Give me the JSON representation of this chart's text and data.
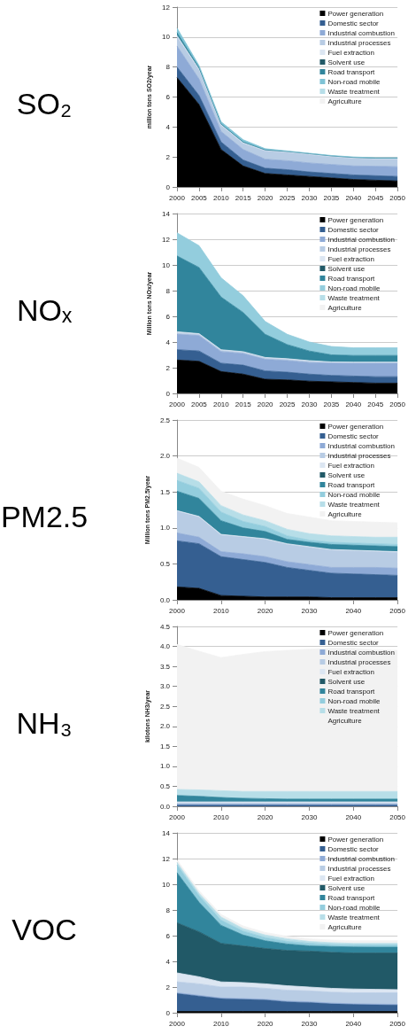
{
  "chart_data": [
    {
      "type": "area",
      "title": "SO₂",
      "ylabel": "million tons SO2/year",
      "stacked": true,
      "grid": "y",
      "legend": "top right",
      "marker": "none",
      "x": [
        2000,
        2005,
        2010,
        2015,
        2020,
        2025,
        2030,
        2035,
        2040,
        2045,
        2050
      ],
      "xlim": [
        2000,
        2050
      ],
      "xticks": [
        2000,
        2005,
        2010,
        2015,
        2020,
        2025,
        2030,
        2035,
        2040,
        2045,
        2050
      ],
      "ylim": [
        0,
        12
      ],
      "yticks": [
        0,
        2,
        4,
        6,
        8,
        10,
        12
      ],
      "series": [
        {
          "name": "Power generation",
          "color": "#000000",
          "values": [
            7.3,
            5.5,
            2.5,
            1.4,
            0.9,
            0.8,
            0.7,
            0.6,
            0.5,
            0.45,
            0.4
          ]
        },
        {
          "name": "Domestic sector",
          "color": "#355f91",
          "values": [
            0.7,
            0.6,
            0.5,
            0.4,
            0.35,
            0.35,
            0.3,
            0.3,
            0.3,
            0.3,
            0.3
          ]
        },
        {
          "name": "Industrial combustion",
          "color": "#8eaad6",
          "values": [
            1.4,
            1.1,
            0.7,
            0.7,
            0.6,
            0.6,
            0.6,
            0.6,
            0.6,
            0.63,
            0.65
          ]
        },
        {
          "name": "Industrial processes",
          "color": "#b8cce4",
          "values": [
            0.6,
            0.6,
            0.4,
            0.4,
            0.55,
            0.55,
            0.55,
            0.5,
            0.5,
            0.47,
            0.5
          ]
        },
        {
          "name": "Fuel extraction",
          "color": "#dce6f2",
          "values": [
            0.1,
            0.05,
            0.05,
            0.05,
            0.05,
            0.05,
            0.05,
            0.05,
            0.05,
            0.05,
            0.05
          ]
        },
        {
          "name": "Solvent use",
          "color": "#215967",
          "values": [
            null,
            null,
            null,
            null,
            null,
            null,
            null,
            null,
            null,
            null,
            null
          ]
        },
        {
          "name": "Road transport",
          "color": "#31859c",
          "values": [
            0.2,
            0.1,
            0.05,
            0.05,
            0.02,
            0.02,
            0.02,
            0.02,
            0.02,
            0.02,
            0.02
          ]
        },
        {
          "name": "Non-road mobile",
          "color": "#7fc3d6",
          "values": [
            0.3,
            0.15,
            0.15,
            0.15,
            0.08,
            0.03,
            0.03,
            0.03,
            0.03,
            0.03,
            0.03
          ]
        },
        {
          "name": "Waste treatment",
          "color": "#b7dee8",
          "values": [
            null,
            null,
            null,
            null,
            null,
            null,
            null,
            null,
            null,
            null,
            null
          ]
        },
        {
          "name": "Agriculture",
          "color": "#f2f2f2",
          "values": [
            null,
            null,
            null,
            null,
            null,
            null,
            null,
            null,
            null,
            null,
            null
          ]
        }
      ]
    },
    {
      "type": "area",
      "title": "NOₓ",
      "ylabel": "Million tons NOx/year",
      "stacked": true,
      "grid": "y",
      "legend": "top right",
      "marker": "none",
      "x": [
        2000,
        2005,
        2010,
        2015,
        2020,
        2025,
        2030,
        2035,
        2040,
        2045,
        2050
      ],
      "xlim": [
        2000,
        2050
      ],
      "xticks": [
        2000,
        2005,
        2010,
        2015,
        2020,
        2025,
        2030,
        2035,
        2040,
        2045,
        2050
      ],
      "ylim": [
        0,
        14
      ],
      "yticks": [
        0,
        2,
        4,
        6,
        8,
        10,
        12,
        14
      ],
      "series": [
        {
          "name": "Power generation",
          "color": "#000000",
          "values": [
            2.6,
            2.5,
            1.7,
            1.5,
            1.1,
            1.05,
            0.95,
            0.9,
            0.85,
            0.8,
            0.8
          ]
        },
        {
          "name": "Domestic sector",
          "color": "#355f91",
          "values": [
            0.8,
            0.8,
            0.65,
            0.7,
            0.65,
            0.6,
            0.55,
            0.5,
            0.5,
            0.5,
            0.5
          ]
        },
        {
          "name": "Industrial combustion",
          "color": "#8eaad6",
          "values": [
            1.2,
            1.2,
            0.9,
            0.9,
            0.9,
            0.9,
            0.9,
            0.95,
            1.0,
            1.05,
            1.05
          ]
        },
        {
          "name": "Industrial processes",
          "color": "#b8cce4",
          "values": [
            0.1,
            0.1,
            0.1,
            0.1,
            0.1,
            0.1,
            0.1,
            0.07,
            0.05,
            0.05,
            0.05
          ]
        },
        {
          "name": "Fuel extraction",
          "color": "#dce6f2",
          "values": [
            0.1,
            0.05,
            0.05,
            0.05,
            0.05,
            0.05,
            0.05,
            0.03,
            0.03,
            0.03,
            0.03
          ]
        },
        {
          "name": "Solvent use",
          "color": "#215967",
          "values": [
            null,
            null,
            null,
            null,
            null,
            null,
            null,
            null,
            null,
            null,
            null
          ]
        },
        {
          "name": "Road transport",
          "color": "#31859c",
          "values": [
            5.9,
            5.15,
            4.1,
            3.05,
            1.8,
            1.1,
            0.75,
            0.55,
            0.52,
            0.52,
            0.52
          ]
        },
        {
          "name": "Non-road mobile",
          "color": "#93cddd",
          "values": [
            1.8,
            1.7,
            1.5,
            1.3,
            1.0,
            0.8,
            0.7,
            0.65,
            0.6,
            0.6,
            0.6
          ]
        },
        {
          "name": "Waste treatment",
          "color": "#b7dee8",
          "values": [
            null,
            null,
            null,
            null,
            null,
            null,
            null,
            null,
            null,
            null,
            null
          ]
        },
        {
          "name": "Agriculture",
          "color": "#f2f2f2",
          "values": [
            null,
            null,
            null,
            null,
            null,
            null,
            null,
            null,
            null,
            null,
            null
          ]
        }
      ]
    },
    {
      "type": "area",
      "title": "PM2.5",
      "ylabel": "Million tons PM2.5/year",
      "stacked": true,
      "grid": "y",
      "legend": "top right",
      "marker": "none",
      "x": [
        2000,
        2005,
        2010,
        2015,
        2020,
        2025,
        2030,
        2035,
        2040,
        2045,
        2050
      ],
      "xlim": [
        2000,
        2050
      ],
      "xticks": [
        2000,
        2010,
        2020,
        2030,
        2040,
        2050
      ],
      "ylim": [
        0,
        2.5
      ],
      "yticks": [
        {
          "value": 0,
          "label": "0.0"
        },
        {
          "value": 0.5,
          "label": "0.5"
        },
        {
          "value": 1,
          "label": "1.0"
        },
        {
          "value": 1.5,
          "label": "1.5"
        },
        {
          "value": 2,
          "label": "2.0"
        },
        {
          "value": 2.5,
          "label": "2.5"
        }
      ],
      "series": [
        {
          "name": "Power generation",
          "color": "#000000",
          "values": [
            0.18,
            0.16,
            0.06,
            0.05,
            0.04,
            0.04,
            0.04,
            0.03,
            0.03,
            0.03,
            0.03
          ]
        },
        {
          "name": "Domestic sector",
          "color": "#355f91",
          "values": [
            0.64,
            0.62,
            0.54,
            0.51,
            0.48,
            0.41,
            0.37,
            0.34,
            0.33,
            0.32,
            0.31
          ]
        },
        {
          "name": "Industrial combustion",
          "color": "#8eaad6",
          "values": [
            0.11,
            0.09,
            0.07,
            0.08,
            0.08,
            0.08,
            0.08,
            0.08,
            0.09,
            0.1,
            0.1
          ]
        },
        {
          "name": "Industrial processes",
          "color": "#b8cce4",
          "values": [
            0.3,
            0.28,
            0.23,
            0.23,
            0.24,
            0.24,
            0.24,
            0.24,
            0.23,
            0.22,
            0.22
          ]
        },
        {
          "name": "Fuel extraction",
          "color": "#dce6f2",
          "values": [
            0.01,
            0.01,
            0.01,
            0.01,
            0.01,
            0.01,
            0.01,
            0.01,
            0.01,
            0.01,
            0.01
          ]
        },
        {
          "name": "Solvent use",
          "color": "#215967",
          "values": [
            null,
            null,
            null,
            null,
            null,
            null,
            null,
            null,
            null,
            null,
            null
          ]
        },
        {
          "name": "Road transport",
          "color": "#31859c",
          "values": [
            0.27,
            0.25,
            0.19,
            0.12,
            0.1,
            0.06,
            0.06,
            0.07,
            0.07,
            0.07,
            0.07
          ]
        },
        {
          "name": "Non-road mobile",
          "color": "#93cddd",
          "values": [
            0.15,
            0.14,
            0.12,
            0.09,
            0.07,
            0.05,
            0.03,
            0.03,
            0.03,
            0.03,
            0.03
          ]
        },
        {
          "name": "Waste treatment",
          "color": "#b7dee8",
          "values": [
            0.1,
            0.09,
            0.09,
            0.09,
            0.08,
            0.09,
            0.09,
            0.09,
            0.09,
            0.09,
            0.1
          ]
        },
        {
          "name": "Agriculture",
          "color": "#f2f2f2",
          "values": [
            0.21,
            0.2,
            0.2,
            0.22,
            0.21,
            0.22,
            0.23,
            0.21,
            0.21,
            0.21,
            0.2
          ]
        }
      ]
    },
    {
      "type": "area",
      "title": "NH₃",
      "ylabel": "kilotons NH3/year",
      "stacked": true,
      "grid": "y",
      "legend": "top right",
      "marker": "none",
      "x": [
        2000,
        2005,
        2010,
        2015,
        2020,
        2025,
        2030,
        2035,
        2040,
        2045,
        2050
      ],
      "xlim": [
        2000,
        2050
      ],
      "xticks": [
        2000,
        2010,
        2020,
        2030,
        2040,
        2050
      ],
      "ylim": [
        0,
        4.5
      ],
      "yticks": [
        {
          "value": 0,
          "label": "0.0"
        },
        {
          "value": 0.5,
          "label": "0.5"
        },
        {
          "value": 1,
          "label": "1.0"
        },
        {
          "value": 1.5,
          "label": "1.5"
        },
        {
          "value": 2,
          "label": "2.0"
        },
        {
          "value": 2.5,
          "label": "2.5"
        },
        {
          "value": 3,
          "label": "3.0"
        },
        {
          "value": 3.5,
          "label": "3.5"
        },
        {
          "value": 4,
          "label": "4.0"
        },
        {
          "value": 4.5,
          "label": "4.5"
        }
      ],
      "series": [
        {
          "name": "Power generation",
          "color": "#000000",
          "values": [
            null,
            null,
            null,
            null,
            null,
            null,
            null,
            null,
            null,
            null,
            null
          ]
        },
        {
          "name": "Domestic sector",
          "color": "#355f91",
          "values": [
            0.03,
            0.03,
            0.03,
            0.03,
            0.03,
            0.03,
            0.03,
            0.03,
            0.03,
            0.03,
            0.03
          ]
        },
        {
          "name": "Industrial combustion",
          "color": "#8eaad6",
          "values": [
            0.02,
            0.02,
            0.02,
            0.02,
            0.02,
            0.02,
            0.02,
            0.02,
            0.02,
            0.02,
            0.02
          ]
        },
        {
          "name": "Industrial processes",
          "color": "#b8cce4",
          "values": [
            0.03,
            0.03,
            0.03,
            0.03,
            0.03,
            0.03,
            0.03,
            0.03,
            0.03,
            0.03,
            0.03
          ]
        },
        {
          "name": "Fuel extraction",
          "color": "#dce6f2",
          "values": [
            0.03,
            0.03,
            0.03,
            0.03,
            0.03,
            0.03,
            0.03,
            0.03,
            0.03,
            0.03,
            0.03
          ]
        },
        {
          "name": "Solvent use",
          "color": "#215967",
          "values": [
            null,
            null,
            null,
            null,
            null,
            null,
            null,
            null,
            null,
            null,
            null
          ]
        },
        {
          "name": "Road transport",
          "color": "#31859c",
          "values": [
            0.16,
            0.14,
            0.11,
            0.09,
            0.08,
            0.07,
            0.07,
            0.07,
            0.07,
            0.07,
            0.07
          ]
        },
        {
          "name": "Non-road mobile",
          "color": "#93cddd",
          "values": [
            null,
            null,
            null,
            null,
            null,
            null,
            null,
            null,
            null,
            null,
            null
          ]
        },
        {
          "name": "Waste treatment",
          "color": "#b7dee8",
          "values": [
            0.15,
            0.16,
            0.17,
            0.17,
            0.18,
            0.19,
            0.19,
            0.19,
            0.19,
            0.19,
            0.19
          ]
        },
        {
          "name": "Agriculture",
          "color": "#f2f2f2",
          "values": [
            3.63,
            3.47,
            3.33,
            3.43,
            3.5,
            3.53,
            3.56,
            3.58,
            3.58,
            3.55,
            3.53
          ]
        }
      ]
    },
    {
      "type": "area",
      "title": "VOC",
      "stacked": true,
      "grid": "y",
      "legend": "top right",
      "marker": "none",
      "x": [
        2000,
        2005,
        2010,
        2015,
        2020,
        2025,
        2030,
        2035,
        2040,
        2045,
        2050
      ],
      "xlim": [
        2000,
        2050
      ],
      "xticks": [
        2000,
        2010,
        2020,
        2030,
        2040,
        2050
      ],
      "ylim": [
        0,
        14
      ],
      "yticks": [
        0,
        2,
        4,
        6,
        8,
        10,
        12,
        14
      ],
      "series": [
        {
          "name": "Power generation",
          "color": "#000000",
          "values": [
            0.1,
            0.1,
            0.1,
            0.1,
            0.1,
            0.1,
            0.1,
            0.1,
            0.1,
            0.1,
            0.1
          ]
        },
        {
          "name": "Domestic sector",
          "color": "#355f91",
          "values": [
            1.4,
            1.2,
            1.0,
            0.95,
            0.9,
            0.75,
            0.7,
            0.6,
            0.55,
            0.52,
            0.5
          ]
        },
        {
          "name": "Industrial combustion",
          "color": "#8eaad6",
          "values": [
            0.05,
            0.05,
            0.05,
            0.05,
            0.05,
            0.05,
            0.05,
            0.05,
            0.05,
            0.05,
            0.05
          ]
        },
        {
          "name": "Industrial processes",
          "color": "#b8cce4",
          "values": [
            0.85,
            0.9,
            0.85,
            0.9,
            0.85,
            0.85,
            0.85,
            0.85,
            0.85,
            0.88,
            0.9
          ]
        },
        {
          "name": "Fuel extraction",
          "color": "#dce6f2",
          "values": [
            0.7,
            0.55,
            0.4,
            0.35,
            0.35,
            0.35,
            0.3,
            0.3,
            0.3,
            0.27,
            0.25
          ]
        },
        {
          "name": "Solvent use",
          "color": "#215967",
          "values": [
            3.9,
            3.5,
            3.0,
            2.85,
            2.75,
            2.75,
            2.8,
            2.8,
            2.8,
            2.83,
            2.85
          ]
        },
        {
          "name": "Road transport",
          "color": "#31859c",
          "values": [
            3.9,
            2.3,
            1.4,
            0.85,
            0.6,
            0.5,
            0.4,
            0.45,
            0.47,
            0.45,
            0.45
          ]
        },
        {
          "name": "Non-road mobile",
          "color": "#93cddd",
          "values": [
            0.6,
            0.5,
            0.4,
            0.3,
            0.25,
            0.2,
            0.2,
            0.15,
            0.16,
            0.17,
            0.17
          ]
        },
        {
          "name": "Waste treatment",
          "color": "#b7dee8",
          "values": [
            0.2,
            0.2,
            0.25,
            0.2,
            0.2,
            0.2,
            0.15,
            0.15,
            0.12,
            0.13,
            0.13
          ]
        },
        {
          "name": "Agriculture",
          "color": "#f2f2f2",
          "values": [
            0.2,
            0.2,
            0.2,
            0.2,
            0.2,
            0.2,
            0.2,
            0.2,
            0.2,
            0.2,
            0.2
          ]
        }
      ]
    }
  ]
}
